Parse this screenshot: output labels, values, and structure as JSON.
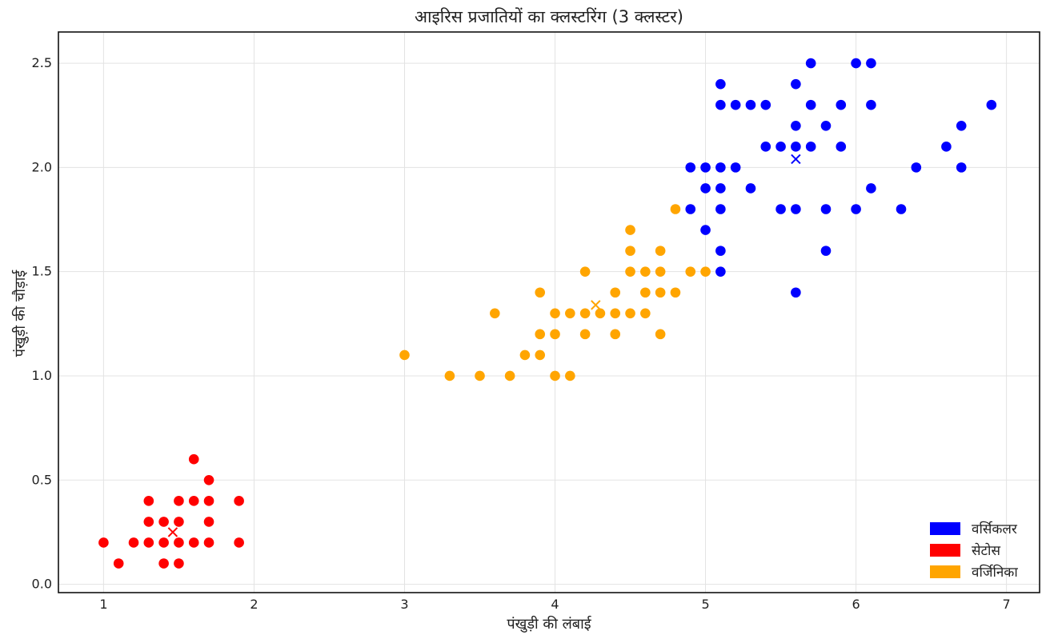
{
  "chart_data": {
    "type": "scatter",
    "title": "आइरिस प्रजातियों का क्लस्टरिंग (3 क्लस्टर)",
    "xlabel": "पंखुड़ी की लंबाई",
    "ylabel": "पंखुड़ी की चौड़ाई",
    "xlim": [
      0.7,
      7.22
    ],
    "ylim": [
      -0.04,
      2.65
    ],
    "xticks": [
      1,
      2,
      3,
      4,
      5,
      6,
      7
    ],
    "yticks": [
      0.0,
      0.5,
      1.0,
      1.5,
      2.0,
      2.5
    ],
    "xtick_labels": [
      "1",
      "2",
      "3",
      "4",
      "5",
      "6",
      "7"
    ],
    "ytick_labels": [
      "0.0",
      "0.5",
      "1.0",
      "1.5",
      "2.0",
      "2.5"
    ],
    "grid": true,
    "legend_position": "bottom-right",
    "legend": [
      {
        "label": "वर्सिकलर",
        "color": "#0000ff"
      },
      {
        "label": "सेटोस",
        "color": "#ff0000"
      },
      {
        "label": "वर्जिनिका",
        "color": "#ffa500"
      }
    ],
    "series": [
      {
        "name": "सेटोस",
        "color": "#ff0000",
        "centroid": [
          1.46,
          0.25
        ],
        "points": [
          [
            1.0,
            0.2
          ],
          [
            1.1,
            0.1
          ],
          [
            1.2,
            0.2
          ],
          [
            1.3,
            0.2
          ],
          [
            1.3,
            0.3
          ],
          [
            1.3,
            0.4
          ],
          [
            1.4,
            0.1
          ],
          [
            1.4,
            0.2
          ],
          [
            1.4,
            0.3
          ],
          [
            1.5,
            0.1
          ],
          [
            1.5,
            0.2
          ],
          [
            1.5,
            0.3
          ],
          [
            1.5,
            0.4
          ],
          [
            1.6,
            0.2
          ],
          [
            1.6,
            0.4
          ],
          [
            1.6,
            0.6
          ],
          [
            1.7,
            0.2
          ],
          [
            1.7,
            0.3
          ],
          [
            1.7,
            0.4
          ],
          [
            1.7,
            0.5
          ],
          [
            1.9,
            0.2
          ],
          [
            1.9,
            0.4
          ]
        ]
      },
      {
        "name": "वर्जिनिका",
        "color": "#ffa500",
        "centroid": [
          4.27,
          1.34
        ],
        "points": [
          [
            3.0,
            1.1
          ],
          [
            3.3,
            1.0
          ],
          [
            3.5,
            1.0
          ],
          [
            3.6,
            1.3
          ],
          [
            3.7,
            1.0
          ],
          [
            3.8,
            1.1
          ],
          [
            3.9,
            1.1
          ],
          [
            3.9,
            1.2
          ],
          [
            3.9,
            1.4
          ],
          [
            4.0,
            1.0
          ],
          [
            4.0,
            1.2
          ],
          [
            4.0,
            1.3
          ],
          [
            4.1,
            1.0
          ],
          [
            4.1,
            1.3
          ],
          [
            4.2,
            1.2
          ],
          [
            4.2,
            1.3
          ],
          [
            4.2,
            1.5
          ],
          [
            4.3,
            1.3
          ],
          [
            4.4,
            1.2
          ],
          [
            4.4,
            1.3
          ],
          [
            4.4,
            1.4
          ],
          [
            4.5,
            1.3
          ],
          [
            4.5,
            1.5
          ],
          [
            4.5,
            1.6
          ],
          [
            4.5,
            1.7
          ],
          [
            4.6,
            1.3
          ],
          [
            4.6,
            1.4
          ],
          [
            4.6,
            1.5
          ],
          [
            4.7,
            1.2
          ],
          [
            4.7,
            1.4
          ],
          [
            4.7,
            1.5
          ],
          [
            4.7,
            1.6
          ],
          [
            4.8,
            1.4
          ],
          [
            4.8,
            1.8
          ],
          [
            4.9,
            1.5
          ],
          [
            5.0,
            1.5
          ]
        ]
      },
      {
        "name": "वर्सिकलर",
        "color": "#0000ff",
        "centroid": [
          5.6,
          2.04
        ],
        "points": [
          [
            4.9,
            1.8
          ],
          [
            4.9,
            2.0
          ],
          [
            5.0,
            1.7
          ],
          [
            5.0,
            1.9
          ],
          [
            5.0,
            2.0
          ],
          [
            5.1,
            1.5
          ],
          [
            5.1,
            1.6
          ],
          [
            5.1,
            1.8
          ],
          [
            5.1,
            1.9
          ],
          [
            5.1,
            2.0
          ],
          [
            5.1,
            2.3
          ],
          [
            5.1,
            2.4
          ],
          [
            5.2,
            2.0
          ],
          [
            5.2,
            2.3
          ],
          [
            5.3,
            1.9
          ],
          [
            5.3,
            2.3
          ],
          [
            5.4,
            2.1
          ],
          [
            5.4,
            2.3
          ],
          [
            5.5,
            1.8
          ],
          [
            5.5,
            2.1
          ],
          [
            5.6,
            1.4
          ],
          [
            5.6,
            1.8
          ],
          [
            5.6,
            2.1
          ],
          [
            5.6,
            2.2
          ],
          [
            5.6,
            2.4
          ],
          [
            5.7,
            2.1
          ],
          [
            5.7,
            2.3
          ],
          [
            5.7,
            2.5
          ],
          [
            5.8,
            1.6
          ],
          [
            5.8,
            1.8
          ],
          [
            5.8,
            2.2
          ],
          [
            5.9,
            2.1
          ],
          [
            5.9,
            2.3
          ],
          [
            6.0,
            1.8
          ],
          [
            6.0,
            2.5
          ],
          [
            6.1,
            1.9
          ],
          [
            6.1,
            2.3
          ],
          [
            6.1,
            2.5
          ],
          [
            6.3,
            1.8
          ],
          [
            6.4,
            2.0
          ],
          [
            6.6,
            2.1
          ],
          [
            6.7,
            2.0
          ],
          [
            6.7,
            2.2
          ],
          [
            6.9,
            2.3
          ]
        ]
      }
    ]
  }
}
